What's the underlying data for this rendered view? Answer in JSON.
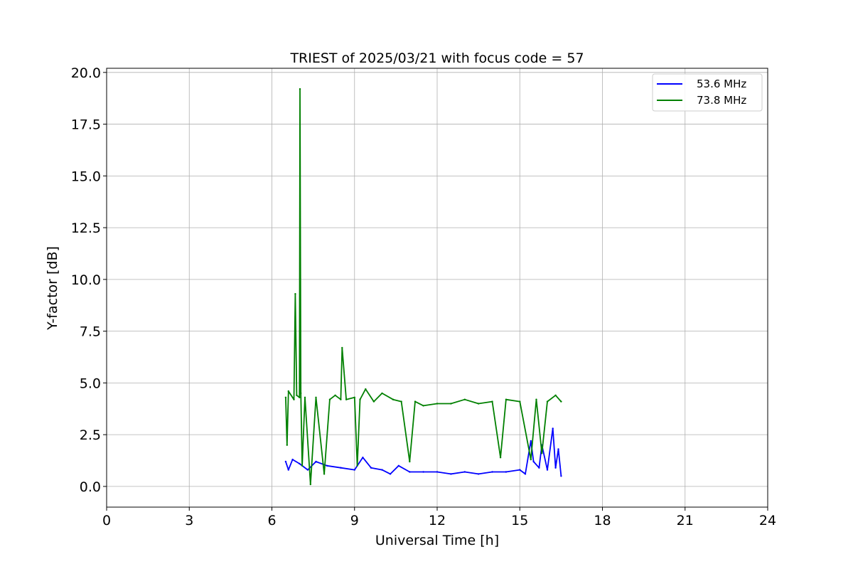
{
  "chart_data": {
    "type": "line",
    "title": "TRIEST of 2025/03/21 with focus code = 57",
    "xlabel": "Universal Time [h]",
    "ylabel": "Y-factor [dB]",
    "xlim": [
      0,
      24
    ],
    "ylim": [
      -1.0,
      20.2
    ],
    "x_ticks": [
      0,
      3,
      6,
      9,
      12,
      15,
      18,
      21,
      24
    ],
    "x_tick_labels": [
      "0",
      "3",
      "6",
      "9",
      "12",
      "15",
      "18",
      "21",
      "24"
    ],
    "y_ticks": [
      0.0,
      2.5,
      5.0,
      7.5,
      10.0,
      12.5,
      15.0,
      17.5,
      20.0
    ],
    "y_tick_labels": [
      "0.0",
      "2.5",
      "5.0",
      "7.5",
      "10.0",
      "12.5",
      "15.0",
      "17.5",
      "20.0"
    ],
    "grid": true,
    "legend_position": "top-right",
    "series": [
      {
        "name": "53.6 MHz",
        "color": "#0000ff",
        "x": [
          6.5,
          6.6,
          6.75,
          7.0,
          7.3,
          7.6,
          8.0,
          8.5,
          9.0,
          9.3,
          9.6,
          10.0,
          10.3,
          10.6,
          11.0,
          11.5,
          12.0,
          12.5,
          13.0,
          13.5,
          14.0,
          14.5,
          15.0,
          15.2,
          15.4,
          15.5,
          15.7,
          15.8,
          16.0,
          16.2,
          16.3,
          16.4,
          16.5
        ],
        "y": [
          1.2,
          0.8,
          1.3,
          1.1,
          0.8,
          1.2,
          1.0,
          0.9,
          0.8,
          1.4,
          0.9,
          0.8,
          0.6,
          1.0,
          0.7,
          0.7,
          0.7,
          0.6,
          0.7,
          0.6,
          0.7,
          0.7,
          0.8,
          0.6,
          2.2,
          1.2,
          0.9,
          2.0,
          0.8,
          2.8,
          0.9,
          1.8,
          0.5
        ]
      },
      {
        "name": "73.8 MHz",
        "color": "#008000",
        "x": [
          6.5,
          6.55,
          6.6,
          6.8,
          6.85,
          6.9,
          7.0,
          7.02,
          7.05,
          7.1,
          7.2,
          7.4,
          7.6,
          7.9,
          8.1,
          8.3,
          8.5,
          8.55,
          8.7,
          9.0,
          9.1,
          9.2,
          9.4,
          9.7,
          10.0,
          10.4,
          10.7,
          11.0,
          11.2,
          11.5,
          12.0,
          12.5,
          13.0,
          13.5,
          14.0,
          14.3,
          14.5,
          15.0,
          15.4,
          15.6,
          15.8,
          16.0,
          16.3,
          16.5
        ],
        "y": [
          4.3,
          2.0,
          4.6,
          4.2,
          9.3,
          4.4,
          4.3,
          19.2,
          4.5,
          1.0,
          4.3,
          0.1,
          4.3,
          0.6,
          4.2,
          4.4,
          4.2,
          6.7,
          4.2,
          4.3,
          1.0,
          4.2,
          4.7,
          4.1,
          4.5,
          4.2,
          4.1,
          1.2,
          4.1,
          3.9,
          4.0,
          4.0,
          4.2,
          4.0,
          4.1,
          1.4,
          4.2,
          4.1,
          1.3,
          4.2,
          1.6,
          4.1,
          4.4,
          4.1
        ]
      }
    ]
  }
}
